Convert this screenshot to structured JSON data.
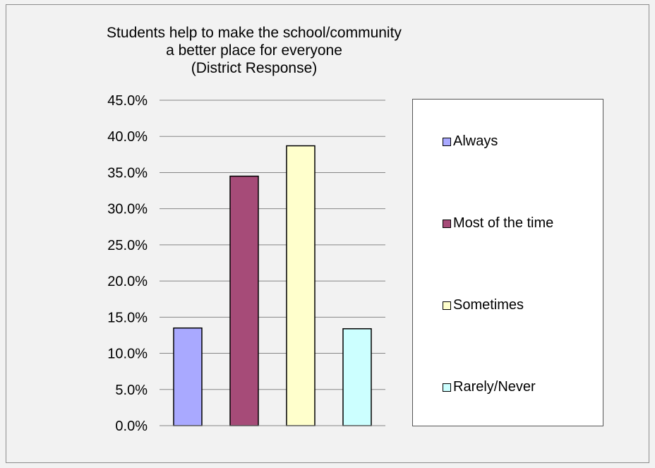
{
  "chart_data": {
    "type": "bar",
    "title_lines": [
      "Students help to make the school/community",
      "a better place for everyone",
      "(District Response)"
    ],
    "categories": [
      "Always",
      "Most of the time",
      "Sometimes",
      "Rarely/Never"
    ],
    "values": [
      13.5,
      34.5,
      38.7,
      13.4
    ],
    "colors": [
      "#a9a9ff",
      "#a64b78",
      "#ffffcc",
      "#ccffff"
    ],
    "ylim": [
      0,
      45
    ],
    "yticks": [
      "0.0%",
      "5.0%",
      "10.0%",
      "15.0%",
      "20.0%",
      "25.0%",
      "30.0%",
      "35.0%",
      "40.0%",
      "45.0%"
    ],
    "grid": true,
    "legend": {
      "position": "right",
      "entries": [
        "Always",
        "Most of the time",
        "Sometimes",
        "Rarely/Never"
      ]
    }
  }
}
